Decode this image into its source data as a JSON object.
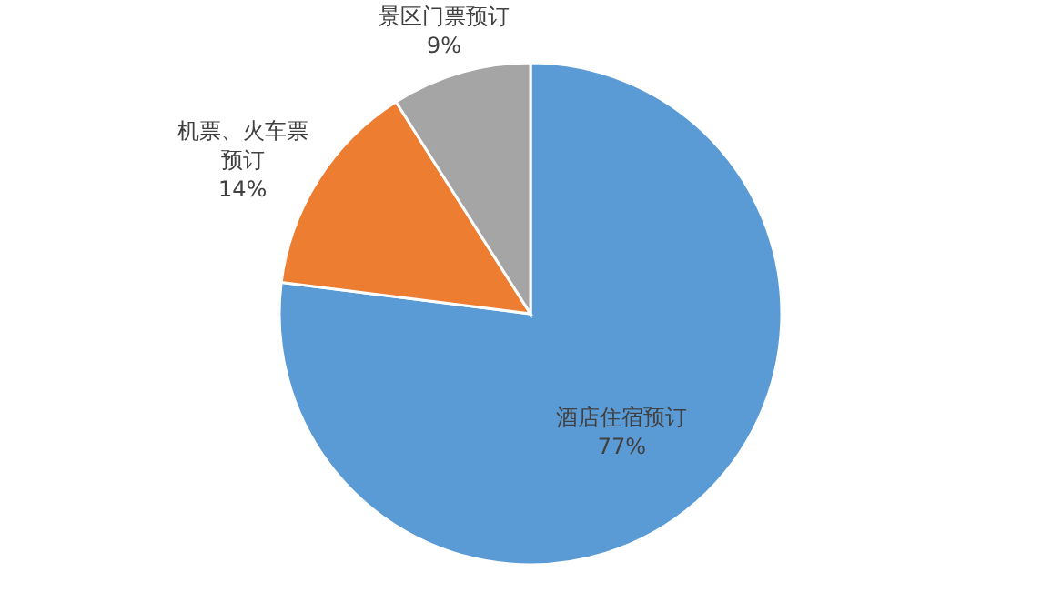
{
  "chart_data": {
    "type": "pie",
    "categories": [
      "酒店住宿预订",
      "机票、火车票预订",
      "景区门票预订"
    ],
    "values": [
      77,
      14,
      9
    ],
    "colors": [
      "#5b9bd5",
      "#ed7d31",
      "#a5a5a5"
    ],
    "value_labels": [
      "77%",
      "14%",
      "9%"
    ]
  }
}
